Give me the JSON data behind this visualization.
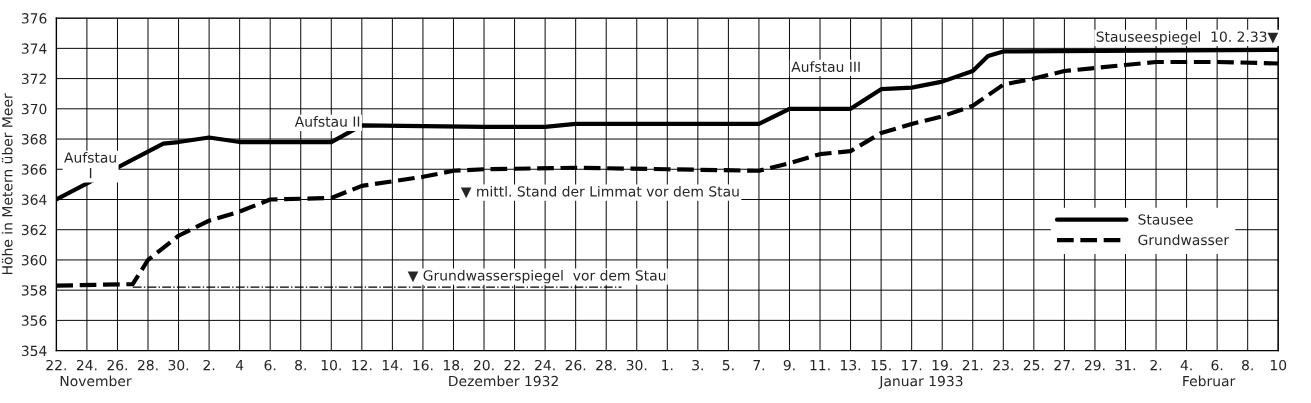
{
  "chart_data": {
    "type": "line",
    "ylabel": "Höhe in Metern über Meer",
    "xlim": [
      "1932-11-22",
      "1933-02-10"
    ],
    "ylim": [
      354,
      376
    ],
    "yticks": [
      354,
      356,
      358,
      360,
      362,
      364,
      366,
      368,
      370,
      372,
      374,
      376
    ],
    "xticks": [
      {
        "value": "1932-11-22",
        "label": "22."
      },
      {
        "value": "1932-11-24",
        "label": "24."
      },
      {
        "value": "1932-11-26",
        "label": "26."
      },
      {
        "value": "1932-11-28",
        "label": "28."
      },
      {
        "value": "1932-11-30",
        "label": "30."
      },
      {
        "value": "1932-12-02",
        "label": "2."
      },
      {
        "value": "1932-12-04",
        "label": "4"
      },
      {
        "value": "1932-12-06",
        "label": "6."
      },
      {
        "value": "1932-12-08",
        "label": "8."
      },
      {
        "value": "1932-12-10",
        "label": "10."
      },
      {
        "value": "1932-12-12",
        "label": "12."
      },
      {
        "value": "1932-12-14",
        "label": "14."
      },
      {
        "value": "1932-12-16",
        "label": "16."
      },
      {
        "value": "1932-12-18",
        "label": "18."
      },
      {
        "value": "1932-12-20",
        "label": "20."
      },
      {
        "value": "1932-12-22",
        "label": "22."
      },
      {
        "value": "1932-12-24",
        "label": "24."
      },
      {
        "value": "1932-12-26",
        "label": "26."
      },
      {
        "value": "1932-12-28",
        "label": "28."
      },
      {
        "value": "1932-12-30",
        "label": "30."
      },
      {
        "value": "1933-01-01",
        "label": "1."
      },
      {
        "value": "1933-01-03",
        "label": "3."
      },
      {
        "value": "1933-01-05",
        "label": "5."
      },
      {
        "value": "1933-01-07",
        "label": "7."
      },
      {
        "value": "1933-01-09",
        "label": "9."
      },
      {
        "value": "1933-01-11",
        "label": "11."
      },
      {
        "value": "1933-01-13",
        "label": "13."
      },
      {
        "value": "1933-01-15",
        "label": "15."
      },
      {
        "value": "1933-01-17",
        "label": "17."
      },
      {
        "value": "1933-01-19",
        "label": "19."
      },
      {
        "value": "1933-01-21",
        "label": "21."
      },
      {
        "value": "1933-01-23",
        "label": "23."
      },
      {
        "value": "1933-01-25",
        "label": "25."
      },
      {
        "value": "1933-01-27",
        "label": "27."
      },
      {
        "value": "1933-01-29",
        "label": "29."
      },
      {
        "value": "1933-01-31",
        "label": "31."
      },
      {
        "value": "1933-02-02",
        "label": "2."
      },
      {
        "value": "1933-02-04",
        "label": "4."
      },
      {
        "value": "1933-02-06",
        "label": "6."
      },
      {
        "value": "1933-02-08",
        "label": "8."
      },
      {
        "value": "1933-02-10",
        "label": "10"
      }
    ],
    "grid": true,
    "legend": "right",
    "marker": "none",
    "series": [
      {
        "name": "Stausee",
        "color": "#000000",
        "line_style": "solid",
        "x": [
          "1932-11-22",
          "1932-11-29",
          "1932-11-30",
          "1932-12-02",
          "1932-12-04",
          "1932-12-10",
          "1932-12-12",
          "1932-12-20",
          "1932-12-24",
          "1932-12-26",
          "1933-01-07",
          "1933-01-09",
          "1933-01-13",
          "1933-01-15",
          "1933-01-17",
          "1933-01-19",
          "1933-01-21",
          "1933-01-22",
          "1933-01-23",
          "1933-02-10"
        ],
        "values": [
          364.0,
          367.7,
          367.8,
          368.1,
          367.8,
          367.8,
          368.9,
          368.8,
          368.8,
          369.0,
          369.0,
          370.0,
          370.0,
          371.3,
          371.4,
          371.8,
          372.5,
          373.5,
          373.8,
          373.9
        ]
      },
      {
        "name": "Grundwasser",
        "color": "#000000",
        "line_style": "dashed",
        "x": [
          "1932-11-22",
          "1932-11-27",
          "1932-11-28",
          "1932-11-29",
          "1932-11-30",
          "1932-12-02",
          "1932-12-04",
          "1932-12-06",
          "1932-12-10",
          "1932-12-12",
          "1932-12-16",
          "1932-12-18",
          "1932-12-20",
          "1932-12-26",
          "1933-01-01",
          "1933-01-07",
          "1933-01-09",
          "1933-01-11",
          "1933-01-13",
          "1933-01-15",
          "1933-01-17",
          "1933-01-19",
          "1933-01-21",
          "1933-01-23",
          "1933-01-25",
          "1933-01-27",
          "1933-01-31",
          "1933-02-02",
          "1933-02-06",
          "1933-02-10"
        ],
        "values": [
          358.3,
          358.4,
          360.0,
          360.8,
          361.6,
          362.6,
          363.2,
          364.0,
          364.1,
          364.9,
          365.5,
          365.9,
          366.0,
          366.1,
          366.0,
          365.9,
          366.4,
          367.0,
          367.2,
          368.4,
          369.0,
          369.5,
          370.2,
          371.6,
          372.0,
          372.5,
          372.9,
          373.1,
          373.1,
          373.0
        ]
      },
      {
        "color": "#000000",
        "line_style": "dashdot",
        "x": [
          "1932-11-27",
          "1932-12-29"
        ],
        "values": [
          358.2,
          358.2
        ]
      }
    ],
    "annotations": [
      "Aufstau\nI",
      "Aufstau II",
      "Aufstau III",
      {
        "text": "Stauseespiegel  10. 2.33▼",
        "x": "1933-02-10",
        "y": 374.0
      },
      "▼ mittl. Stand der Limmat vor dem Stau",
      {
        "text": "▼ Grundwasserspiegel  vor dem Stau",
        "x": "1932-12-15",
        "y": 358.2
      },
      "November",
      "Dezember 1932",
      "Januar 1933",
      "Februar"
    ]
  }
}
